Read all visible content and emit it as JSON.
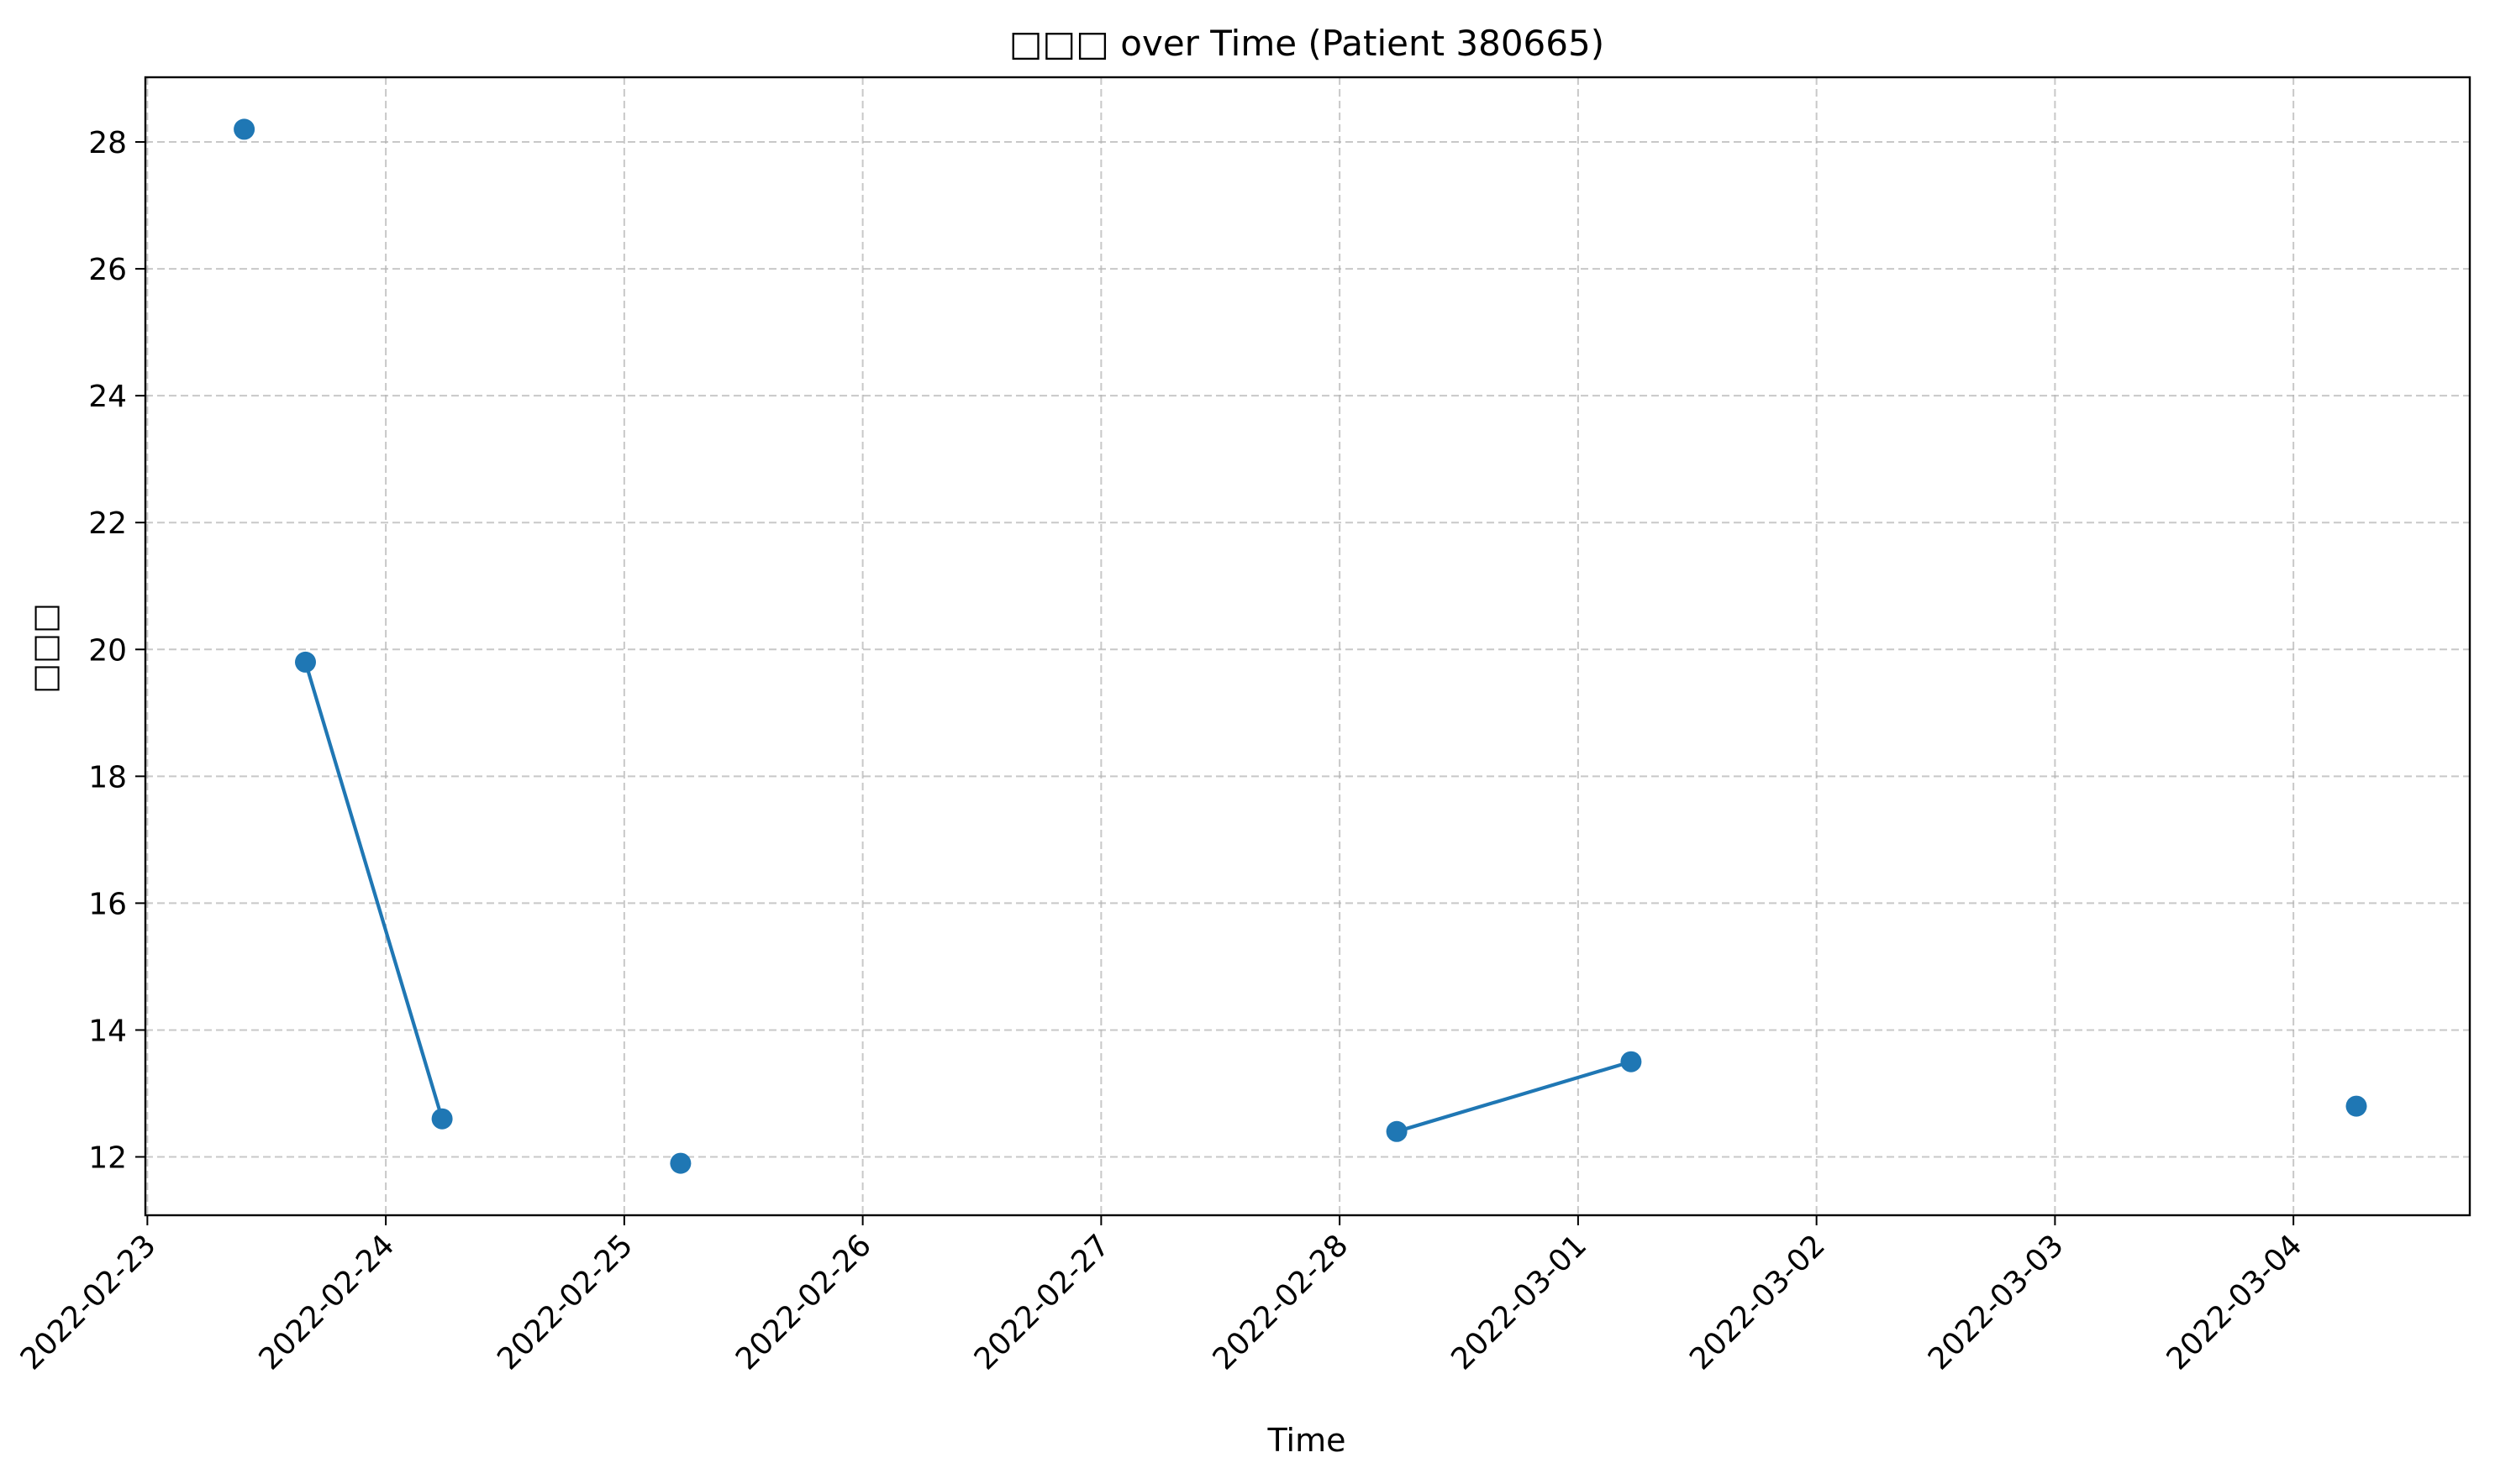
{
  "chart_data": {
    "type": "line",
    "title": "□□□ over Time (Patient 380665)",
    "xlabel": "Time",
    "ylabel": "□□□",
    "x_type": "date",
    "xlim": [
      "2022-02-22T23:48:00",
      "2022-03-04T17:45:00"
    ],
    "ylim": [
      11.08,
      29.02
    ],
    "x_ticks": [
      "2022-02-23",
      "2022-02-24",
      "2022-02-25",
      "2022-02-26",
      "2022-02-27",
      "2022-02-28",
      "2022-03-01",
      "2022-03-02",
      "2022-03-03",
      "2022-03-04"
    ],
    "y_ticks": [
      12,
      14,
      16,
      18,
      20,
      22,
      24,
      26,
      28
    ],
    "grid": true,
    "grid_style": "dashed",
    "series_color": "#1f77b4",
    "segments": [
      [
        {
          "x": "2022-02-23T09:45:00",
          "y": 28.2
        }
      ],
      [
        {
          "x": "2022-02-23T15:55:00",
          "y": 19.8
        },
        {
          "x": "2022-02-24T05:40:00",
          "y": 12.6
        }
      ],
      [
        {
          "x": "2022-02-25T05:40:00",
          "y": 11.9
        }
      ],
      [
        {
          "x": "2022-02-28T05:45:00",
          "y": 12.4
        },
        {
          "x": "2022-03-01T05:20:00",
          "y": 13.5
        }
      ],
      [
        {
          "x": "2022-03-04T06:20:00",
          "y": 12.8
        }
      ]
    ]
  }
}
